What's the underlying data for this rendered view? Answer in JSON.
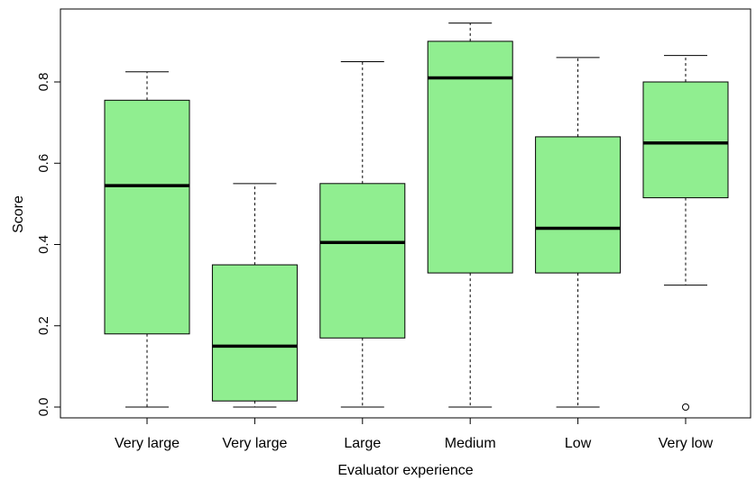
{
  "chart_data": {
    "type": "boxplot",
    "title": "",
    "xlabel": "Evaluator experience",
    "ylabel": "Score",
    "ylim": [
      -0.02,
      0.97
    ],
    "y_ticks": [
      0.0,
      0.2,
      0.4,
      0.6,
      0.8
    ],
    "y_tick_labels": [
      "0.0",
      "0.2",
      "0.4",
      "0.6",
      "0.8"
    ],
    "box_color": "#90EE90",
    "grid": false,
    "categories": [
      "Very large",
      "Very large",
      "Large",
      "Medium",
      "Low",
      "Very low"
    ],
    "boxes": [
      {
        "category": "Very large",
        "whisker_low": 0.0,
        "q1": 0.18,
        "median": 0.545,
        "q3": 0.755,
        "whisker_high": 0.825,
        "outliers": []
      },
      {
        "category": "Very large",
        "whisker_low": 0.0,
        "q1": 0.015,
        "median": 0.15,
        "q3": 0.35,
        "whisker_high": 0.55,
        "outliers": []
      },
      {
        "category": "Large",
        "whisker_low": 0.0,
        "q1": 0.17,
        "median": 0.405,
        "q3": 0.55,
        "whisker_high": 0.85,
        "outliers": []
      },
      {
        "category": "Medium",
        "whisker_low": 0.0,
        "q1": 0.33,
        "median": 0.81,
        "q3": 0.9,
        "whisker_high": 0.945,
        "outliers": []
      },
      {
        "category": "Low",
        "whisker_low": 0.0,
        "q1": 0.33,
        "median": 0.44,
        "q3": 0.665,
        "whisker_high": 0.86,
        "outliers": []
      },
      {
        "category": "Very low",
        "whisker_low": 0.3,
        "q1": 0.515,
        "median": 0.65,
        "q3": 0.8,
        "whisker_high": 0.865,
        "outliers": [
          0.0
        ]
      }
    ]
  }
}
